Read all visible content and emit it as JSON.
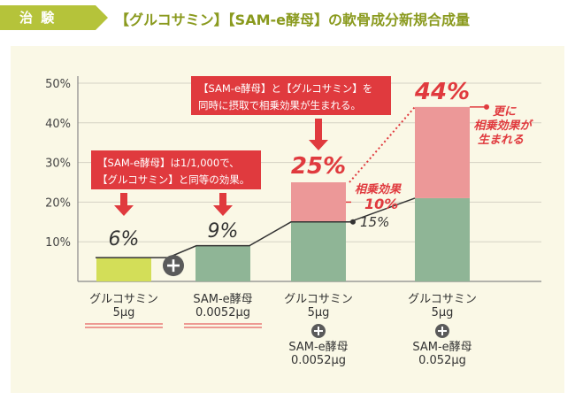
{
  "header": {
    "badge": "治 験",
    "title": "【グルコサミン】【SAM-e酵母】の軟骨成分新規合成量"
  },
  "chart_data": {
    "type": "bar",
    "ylim": [
      0,
      50
    ],
    "yticks": [
      "50%",
      "40%",
      "30%",
      "20%",
      "10%"
    ],
    "grid": true,
    "categories": [
      {
        "line1": "グルコサミン",
        "line2": "5μg",
        "line3": "",
        "line4": ""
      },
      {
        "line1": "SAM-e酵母",
        "line2": "0.0052μg",
        "line3": "",
        "line4": ""
      },
      {
        "line1": "グルコサミン",
        "line2": "5μg",
        "line3": "SAM-e酵母",
        "line4": "0.0052μg"
      },
      {
        "line1": "グルコサミン",
        "line2": "5μg",
        "line3": "SAM-e酵母",
        "line4": "0.052μg"
      }
    ],
    "series": [
      {
        "name": "glucosamine",
        "color": "#d3de58",
        "values": [
          6,
          0,
          0,
          0
        ]
      },
      {
        "name": "same",
        "color": "#8fb596",
        "values": [
          0,
          9,
          15,
          21
        ]
      },
      {
        "name": "synergy",
        "color": "#ec9898",
        "values": [
          0,
          0,
          10,
          23
        ]
      }
    ],
    "value_labels": [
      "6%",
      "9%",
      "25%",
      "44%"
    ],
    "annotations": {
      "pct15": "15%",
      "synergy_label": "相乗効果",
      "synergy_value": "10%",
      "synergy44_l1": "更に",
      "synergy44_l2": "相乗効果が",
      "synergy44_l3": "生まれる",
      "box1_l1": "【SAM-e酵母】は1/1,000で、",
      "box1_l2": "【グルコサミン】と同等の効果。",
      "box2_l1": "【SAM-e酵母】と【グルコサミン】を",
      "box2_l2": "同時に摂取で相乗効果が生まれる。"
    },
    "colors": {
      "accent_red": "#e03a3e",
      "olive": "#8a9a1e",
      "badge": "#b5c33a"
    }
  }
}
